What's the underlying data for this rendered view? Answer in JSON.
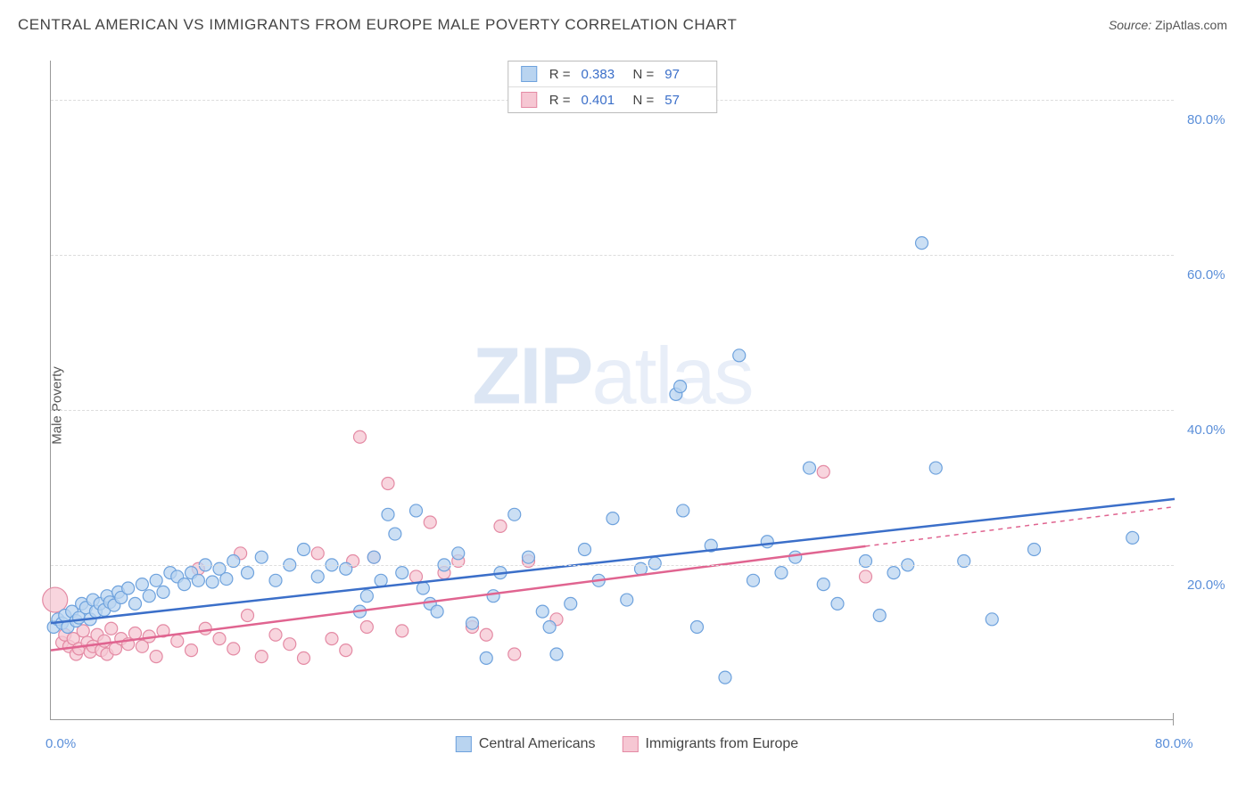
{
  "title": "CENTRAL AMERICAN VS IMMIGRANTS FROM EUROPE MALE POVERTY CORRELATION CHART",
  "source_prefix": "Source:",
  "source_name": "ZipAtlas.com",
  "watermark_zip": "ZIP",
  "watermark_atlas": "atlas",
  "y_axis_label": "Male Poverty",
  "chart": {
    "type": "scatter",
    "xlim": [
      0,
      80
    ],
    "ylim": [
      0,
      85
    ],
    "y_ticks": [
      20,
      40,
      60,
      80
    ],
    "y_tick_labels": [
      "20.0%",
      "40.0%",
      "60.0%",
      "80.0%"
    ],
    "x_tick_min_label": "0.0%",
    "x_tick_max_label": "80.0%",
    "background_color": "#ffffff",
    "grid_color": "#dddddd",
    "axis_color": "#999999",
    "tick_label_color": "#5b8fd9",
    "series": [
      {
        "name": "Central Americans",
        "fill": "#b9d4f0",
        "stroke": "#6ea2dd",
        "line_color": "#3b6fc9",
        "r_value": "0.383",
        "n_value": "97",
        "marker_radius": 7,
        "regression": {
          "x1": 0,
          "y1": 12.5,
          "x2": 80,
          "y2": 28.5,
          "solid_to_x": 80
        },
        "points": [
          [
            0.2,
            12
          ],
          [
            0.5,
            13
          ],
          [
            0.8,
            12.5
          ],
          [
            1,
            13.5
          ],
          [
            1.2,
            12
          ],
          [
            1.5,
            14
          ],
          [
            1.8,
            12.8
          ],
          [
            2,
            13.2
          ],
          [
            2.2,
            15
          ],
          [
            2.5,
            14.5
          ],
          [
            2.8,
            13
          ],
          [
            3,
            15.5
          ],
          [
            3.2,
            14
          ],
          [
            3.5,
            15
          ],
          [
            3.8,
            14.2
          ],
          [
            4,
            16
          ],
          [
            4.2,
            15.2
          ],
          [
            4.5,
            14.8
          ],
          [
            4.8,
            16.5
          ],
          [
            5,
            15.8
          ],
          [
            5.5,
            17
          ],
          [
            6,
            15
          ],
          [
            6.5,
            17.5
          ],
          [
            7,
            16
          ],
          [
            7.5,
            18
          ],
          [
            8,
            16.5
          ],
          [
            8.5,
            19
          ],
          [
            9,
            18.5
          ],
          [
            9.5,
            17.5
          ],
          [
            10,
            19
          ],
          [
            10.5,
            18
          ],
          [
            11,
            20
          ],
          [
            11.5,
            17.8
          ],
          [
            12,
            19.5
          ],
          [
            12.5,
            18.2
          ],
          [
            13,
            20.5
          ],
          [
            14,
            19
          ],
          [
            15,
            21
          ],
          [
            16,
            18
          ],
          [
            17,
            20
          ],
          [
            18,
            22
          ],
          [
            19,
            18.5
          ],
          [
            20,
            20
          ],
          [
            21,
            19.5
          ],
          [
            22,
            14
          ],
          [
            22.5,
            16
          ],
          [
            23,
            21
          ],
          [
            23.5,
            18
          ],
          [
            24,
            26.5
          ],
          [
            24.5,
            24
          ],
          [
            25,
            19
          ],
          [
            26,
            27
          ],
          [
            26.5,
            17
          ],
          [
            27,
            15
          ],
          [
            27.5,
            14
          ],
          [
            28,
            20
          ],
          [
            29,
            21.5
          ],
          [
            30,
            12.5
          ],
          [
            31,
            8
          ],
          [
            31.5,
            16
          ],
          [
            32,
            19
          ],
          [
            33,
            26.5
          ],
          [
            34,
            21
          ],
          [
            35,
            14
          ],
          [
            35.5,
            12
          ],
          [
            36,
            8.5
          ],
          [
            37,
            15
          ],
          [
            38,
            22
          ],
          [
            39,
            18
          ],
          [
            40,
            26
          ],
          [
            41,
            15.5
          ],
          [
            42,
            19.5
          ],
          [
            43,
            20.2
          ],
          [
            44.5,
            42
          ],
          [
            44.8,
            43
          ],
          [
            45,
            27
          ],
          [
            46,
            12
          ],
          [
            47,
            22.5
          ],
          [
            48,
            5.5
          ],
          [
            49,
            47
          ],
          [
            50,
            18
          ],
          [
            51,
            23
          ],
          [
            52,
            19
          ],
          [
            53,
            21
          ],
          [
            54,
            32.5
          ],
          [
            55,
            17.5
          ],
          [
            56,
            15
          ],
          [
            58,
            20.5
          ],
          [
            59,
            13.5
          ],
          [
            60,
            19
          ],
          [
            61,
            20
          ],
          [
            62,
            61.5
          ],
          [
            63,
            32.5
          ],
          [
            65,
            20.5
          ],
          [
            67,
            13
          ],
          [
            70,
            22
          ],
          [
            77,
            23.5
          ]
        ]
      },
      {
        "name": "Immigrants from Europe",
        "fill": "#f6c7d3",
        "stroke": "#e48aa4",
        "line_color": "#e06490",
        "r_value": "0.401",
        "n_value": "57",
        "marker_radius": 7,
        "regression": {
          "x1": 0,
          "y1": 9,
          "x2": 80,
          "y2": 27.5,
          "solid_to_x": 58
        },
        "points": [
          [
            0.3,
            15.5
          ],
          [
            0.8,
            10
          ],
          [
            1,
            11
          ],
          [
            1.3,
            9.5
          ],
          [
            1.6,
            10.5
          ],
          [
            1.8,
            8.5
          ],
          [
            2,
            9.2
          ],
          [
            2.3,
            11.5
          ],
          [
            2.6,
            10
          ],
          [
            2.8,
            8.8
          ],
          [
            3,
            9.5
          ],
          [
            3.3,
            11
          ],
          [
            3.6,
            9
          ],
          [
            3.8,
            10.2
          ],
          [
            4,
            8.5
          ],
          [
            4.3,
            11.8
          ],
          [
            4.6,
            9.2
          ],
          [
            5,
            10.5
          ],
          [
            5.5,
            9.8
          ],
          [
            6,
            11.2
          ],
          [
            6.5,
            9.5
          ],
          [
            7,
            10.8
          ],
          [
            7.5,
            8.2
          ],
          [
            8,
            11.5
          ],
          [
            9,
            10.2
          ],
          [
            10,
            9
          ],
          [
            10.5,
            19.5
          ],
          [
            11,
            11.8
          ],
          [
            12,
            10.5
          ],
          [
            13,
            9.2
          ],
          [
            13.5,
            21.5
          ],
          [
            14,
            13.5
          ],
          [
            15,
            8.2
          ],
          [
            16,
            11
          ],
          [
            17,
            9.8
          ],
          [
            18,
            8
          ],
          [
            19,
            21.5
          ],
          [
            20,
            10.5
          ],
          [
            21,
            9
          ],
          [
            21.5,
            20.5
          ],
          [
            22,
            36.5
          ],
          [
            22.5,
            12
          ],
          [
            23,
            21
          ],
          [
            24,
            30.5
          ],
          [
            25,
            11.5
          ],
          [
            26,
            18.5
          ],
          [
            27,
            25.5
          ],
          [
            28,
            19
          ],
          [
            29,
            20.5
          ],
          [
            30,
            12
          ],
          [
            31,
            11
          ],
          [
            32,
            25
          ],
          [
            33,
            8.5
          ],
          [
            34,
            20.5
          ],
          [
            36,
            13
          ],
          [
            55,
            32
          ],
          [
            58,
            18.5
          ]
        ]
      }
    ]
  },
  "legend_bottom": [
    {
      "label": "Central Americans",
      "fill": "#b9d4f0",
      "stroke": "#6ea2dd"
    },
    {
      "label": "Immigrants from Europe",
      "fill": "#f6c7d3",
      "stroke": "#e48aa4"
    }
  ]
}
